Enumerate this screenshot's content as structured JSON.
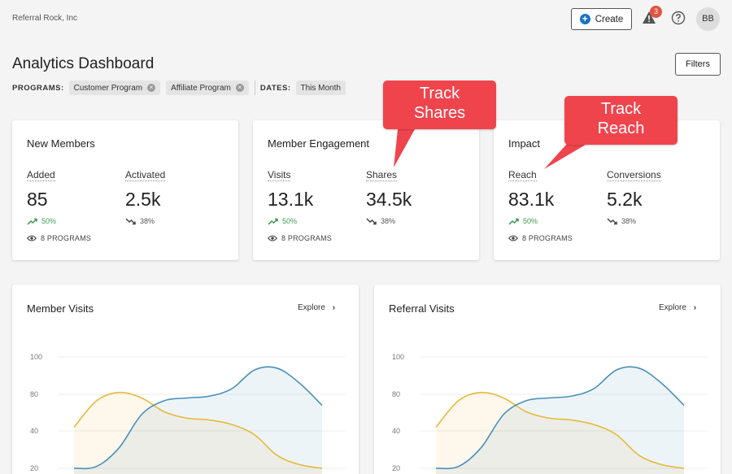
{
  "header": {
    "company": "Referral Rock, Inc",
    "create_label": "Create",
    "alert_count": "3",
    "avatar_initials": "BB"
  },
  "page": {
    "title": "Analytics Dashboard",
    "filters_label": "Filters"
  },
  "filters": {
    "programs_label": "PROGRAMS:",
    "programs": [
      "Customer Program",
      "Affiliate Program"
    ],
    "dates_label": "DATES:",
    "dates": "This Month"
  },
  "cards": [
    {
      "title": "New Members",
      "metrics": [
        {
          "label": "Added",
          "value": "85",
          "change": "50%",
          "trend": "up"
        },
        {
          "label": "Activated",
          "value": "2.5k",
          "change": "38%",
          "trend": "down"
        }
      ],
      "programs": "8 PROGRAMS"
    },
    {
      "title": "Member Engagement",
      "metrics": [
        {
          "label": "Visits",
          "value": "13.1k",
          "change": "50%",
          "trend": "up"
        },
        {
          "label": "Shares",
          "value": "34.5k",
          "change": "38%",
          "trend": "down"
        }
      ],
      "programs": "8 PROGRAMS"
    },
    {
      "title": "Impact",
      "metrics": [
        {
          "label": "Reach",
          "value": "83.1k",
          "change": "50%",
          "trend": "up"
        },
        {
          "label": "Conversions",
          "value": "5.2k",
          "change": "38%",
          "trend": "down"
        }
      ],
      "programs": "8 PROGRAMS"
    }
  ],
  "charts": [
    {
      "title": "Member Visits",
      "explore": "Explore"
    },
    {
      "title": "Referral Visits",
      "explore": "Explore"
    }
  ],
  "chart_data": [
    {
      "type": "area",
      "title": "Member Visits",
      "y_ticks": [
        "100",
        "80",
        "40",
        "20"
      ],
      "series": [
        {
          "color": "#e8b93a",
          "values": [
            44,
            73,
            81,
            76,
            61,
            54,
            52,
            47,
            38,
            27,
            22,
            20
          ]
        },
        {
          "color": "#4a90b8",
          "values": [
            20,
            21,
            31,
            58,
            73,
            76,
            78,
            83,
            93,
            94,
            86,
            68
          ]
        }
      ]
    },
    {
      "type": "area",
      "title": "Referral Visits",
      "y_ticks": [
        "100",
        "80",
        "40",
        "20"
      ],
      "series": [
        {
          "color": "#e8b93a",
          "values": [
            44,
            73,
            81,
            76,
            61,
            54,
            52,
            47,
            38,
            27,
            22,
            20
          ]
        },
        {
          "color": "#4a90b8",
          "values": [
            20,
            21,
            31,
            58,
            73,
            76,
            78,
            83,
            93,
            94,
            86,
            68
          ]
        }
      ]
    }
  ],
  "annotations": {
    "track_shares": "Track\nShares",
    "track_reach": "Track\nReach",
    "color": "#f0444d"
  },
  "colors": {
    "accent": "#1a73c2",
    "badge": "#e0533f",
    "up": "#3d9a4c"
  }
}
